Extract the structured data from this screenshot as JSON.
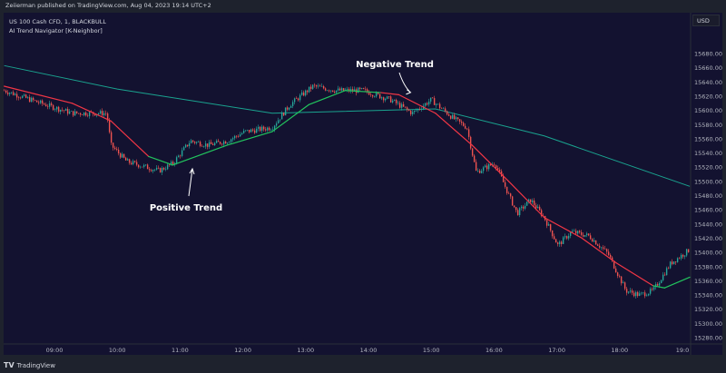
{
  "header": {
    "published": "Zeiierman published on TradingView.com, Aug 04, 2023 19:14 UTC+2"
  },
  "legend": {
    "symbol": "US 100 Cash CFD, 1, BLACKBULL",
    "indicator": "AI Trend Navigator [K-Neighbor]"
  },
  "price_axis": {
    "currency": "USD"
  },
  "footer": {
    "brand": "TradingView"
  },
  "colors": {
    "background": "#131230",
    "up": "#26a69a",
    "down": "#ef5350",
    "trend_up": "#22c55e",
    "trend_down": "#f23645",
    "long_ma": "#1aa38f"
  },
  "chart_data": {
    "type": "candlestick",
    "ylim": [
      15270,
      15690
    ],
    "yticks": [
      15680,
      15660,
      15640,
      15620,
      15600,
      15580,
      15560,
      15540,
      15520,
      15500,
      15480,
      15460,
      15440,
      15420,
      15400,
      15380,
      15360,
      15340,
      15320,
      15300,
      15280
    ],
    "xticks": [
      "09:00",
      "10:00",
      "11:00",
      "12:00",
      "13:00",
      "14:00",
      "15:00",
      "16:00",
      "17:00",
      "18:00",
      "19:0"
    ],
    "price_path": [
      [
        "08:12",
        15628
      ],
      [
        "08:43",
        15612
      ],
      [
        "09:17",
        15596
      ],
      [
        "09:50",
        15596
      ],
      [
        "09:54",
        15551
      ],
      [
        "10:09",
        15528
      ],
      [
        "10:40",
        15515
      ],
      [
        "10:53",
        15525
      ],
      [
        "11:10",
        15557
      ],
      [
        "11:27",
        15551
      ],
      [
        "11:45",
        15557
      ],
      [
        "12:02",
        15570
      ],
      [
        "12:28",
        15576
      ],
      [
        "12:45",
        15608
      ],
      [
        "13:07",
        15634
      ],
      [
        "13:29",
        15628
      ],
      [
        "13:55",
        15628
      ],
      [
        "14:21",
        15615
      ],
      [
        "14:42",
        15596
      ],
      [
        "15:00",
        15615
      ],
      [
        "15:21",
        15589
      ],
      [
        "15:34",
        15576
      ],
      [
        "15:43",
        15513
      ],
      [
        "16:01",
        15526
      ],
      [
        "16:14",
        15481
      ],
      [
        "16:22",
        15455
      ],
      [
        "16:35",
        15474
      ],
      [
        "16:48",
        15449
      ],
      [
        "17:01",
        15410
      ],
      [
        "17:14",
        15429
      ],
      [
        "17:31",
        15423
      ],
      [
        "17:49",
        15398
      ],
      [
        "18:06",
        15346
      ],
      [
        "18:19",
        15340
      ],
      [
        "18:32",
        15346
      ],
      [
        "18:49",
        15385
      ],
      [
        "19:07",
        15404
      ]
    ],
    "trend_line": [
      [
        "08:12",
        15634,
        "down"
      ],
      [
        "09:17",
        15610,
        "down"
      ],
      [
        "09:54",
        15585,
        "down"
      ],
      [
        "10:30",
        15535,
        "down"
      ],
      [
        "10:53",
        15523,
        "up"
      ],
      [
        "11:45",
        15551,
        "up"
      ],
      [
        "12:28",
        15570,
        "up"
      ],
      [
        "13:03",
        15608,
        "up"
      ],
      [
        "13:38",
        15628,
        "up"
      ],
      [
        "14:12",
        15625,
        "up"
      ],
      [
        "14:29",
        15622,
        "down"
      ],
      [
        "15:04",
        15596,
        "down"
      ],
      [
        "15:39",
        15551,
        "down"
      ],
      [
        "16:14",
        15500,
        "down"
      ],
      [
        "16:48",
        15449,
        "down"
      ],
      [
        "17:23",
        15421,
        "down"
      ],
      [
        "17:57",
        15385,
        "down"
      ],
      [
        "18:32",
        15353,
        "down"
      ],
      [
        "18:43",
        15350,
        "up"
      ],
      [
        "19:07",
        15365,
        "up"
      ]
    ],
    "long_ma": [
      [
        "08:12",
        15663
      ],
      [
        "10:00",
        15630
      ],
      [
        "12:28",
        15596
      ],
      [
        "15:04",
        15602
      ],
      [
        "16:48",
        15564
      ],
      [
        "19:07",
        15493
      ]
    ],
    "annotations": [
      {
        "text": "Negative Trend",
        "at": [
          "14:42",
          15615
        ]
      },
      {
        "text": "Positive Trend",
        "at": [
          "11:10",
          15523
        ]
      }
    ]
  }
}
